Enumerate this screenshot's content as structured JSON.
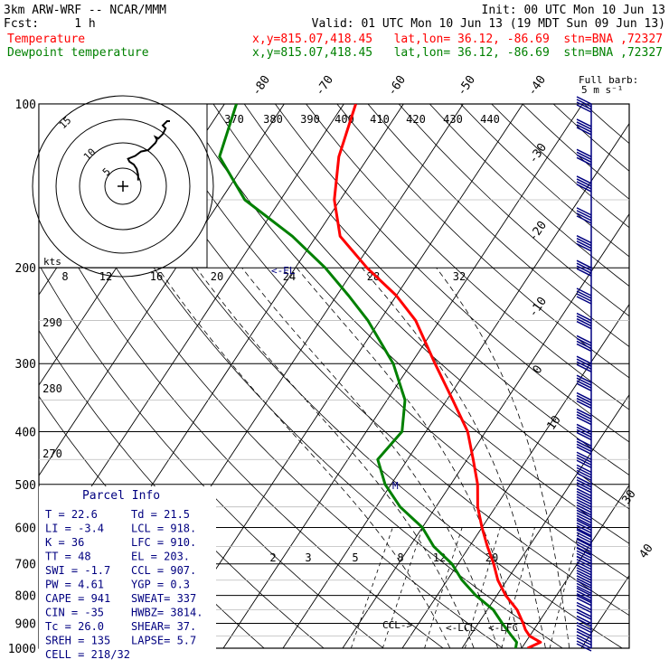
{
  "header": {
    "model": "3km ARW-WRF -- NCAR/MMM",
    "init": "Init: 00 UTC Mon 10 Jun 13",
    "fcst": "Fcst:     1 h",
    "valid": "Valid: 01 UTC Mon 10 Jun 13 (19 MDT Sun 09 Jun 13)",
    "temp_label": "Temperature",
    "temp_loc": "x,y=815.07,418.45   lat,lon= 36.12, -86.69  stn=BNA ,72327",
    "dew_label": "Dewpoint temperature",
    "dew_loc": "x,y=815.07,418.45   lat,lon= 36.12, -86.69  stn=BNA ,72327",
    "barb_title": "Full barb:",
    "barb_unit": "5 m s⁻¹"
  },
  "colors": {
    "temperature": "#ff0000",
    "dewpoint": "#008000",
    "barbs": "#000080",
    "hodo_trace": "#000000"
  },
  "parcel_info": {
    "title": "Parcel Info",
    "rows": [
      [
        "T  =    22.6",
        "Td =  21.5"
      ],
      [
        "LI =    -3.4",
        "LCL =  918."
      ],
      [
        "K  =      36",
        "LFC =  910."
      ],
      [
        "TT =      48",
        "EL  =  203."
      ],
      [
        "SWI =   -1.7",
        "CCL =  907."
      ],
      [
        "PW =    4.61",
        "YGP =   0.3"
      ],
      [
        "CAPE =   941",
        "SWEAT=   337"
      ],
      [
        "CIN =    -35",
        "HWBZ= 3814."
      ],
      [
        "Tc =    26.0",
        "SHEAR=   37."
      ],
      [
        "SREH =   135",
        "LAPSE=   5.7"
      ],
      [
        "CELL = 218/32",
        ""
      ]
    ]
  },
  "hodograph": {
    "kts_label": "kts",
    "ring_labels": [
      "5",
      "10",
      "15"
    ],
    "speed_ticks": [
      "8",
      "12",
      "16",
      "20",
      "24",
      "28",
      "32"
    ]
  },
  "level_labels": {
    "lcl": "LCL",
    "lfc": "<-LFC",
    "el": "<-EL",
    "ccl": "CCL->",
    "cell_marker": "M"
  },
  "chart_data": {
    "type": "skew-T log-P",
    "y_axis": {
      "label": "pressure (hPa)",
      "scale": "log",
      "ticks": [
        100,
        200,
        300,
        400,
        500,
        600,
        700,
        800,
        900,
        1000
      ]
    },
    "isotherm_labels": [
      "-80",
      "-70",
      "-60",
      "-50",
      "-40",
      "-30",
      "-20",
      "-10",
      "0",
      "10",
      "30",
      "40"
    ],
    "theta_labels_top": [
      "370",
      "380",
      "390",
      "400",
      "410",
      "420",
      "430",
      "440"
    ],
    "theta_labels_left": [
      "290",
      "280",
      "270"
    ],
    "mixing_ratio_labels": [
      "2",
      "3",
      "5",
      "8",
      "12",
      "20"
    ],
    "series": [
      {
        "name": "Temperature",
        "points": [
          [
            1000,
            21
          ],
          [
            975,
            22.5
          ],
          [
            950,
            20
          ],
          [
            925,
            18.6
          ],
          [
            900,
            17.5
          ],
          [
            850,
            15
          ],
          [
            800,
            11.5
          ],
          [
            750,
            8.5
          ],
          [
            700,
            6
          ],
          [
            650,
            3
          ],
          [
            600,
            0
          ],
          [
            550,
            -3
          ],
          [
            500,
            -5.5
          ],
          [
            450,
            -9
          ],
          [
            400,
            -13
          ],
          [
            350,
            -19
          ],
          [
            300,
            -26
          ],
          [
            250,
            -34
          ],
          [
            225,
            -40
          ],
          [
            200,
            -48
          ],
          [
            175,
            -56
          ],
          [
            150,
            -61
          ],
          [
            125,
            -65
          ],
          [
            100,
            -68
          ]
        ]
      },
      {
        "name": "Dewpoint temperature",
        "points": [
          [
            1000,
            19
          ],
          [
            975,
            18.5
          ],
          [
            950,
            17
          ],
          [
            925,
            15.5
          ],
          [
            900,
            14
          ],
          [
            850,
            11
          ],
          [
            800,
            6.5
          ],
          [
            750,
            2.5
          ],
          [
            700,
            -1
          ],
          [
            650,
            -6
          ],
          [
            600,
            -10
          ],
          [
            550,
            -16
          ],
          [
            500,
            -21
          ],
          [
            450,
            -25
          ],
          [
            400,
            -24
          ],
          [
            350,
            -27
          ],
          [
            300,
            -33
          ],
          [
            250,
            -42
          ],
          [
            225,
            -48
          ],
          [
            200,
            -55
          ],
          [
            175,
            -64
          ],
          [
            150,
            -76
          ],
          [
            125,
            -85
          ],
          [
            100,
            -88
          ]
        ]
      }
    ],
    "wind_barbs": [
      [
        1000,
        10
      ],
      [
        975,
        10
      ],
      [
        950,
        12
      ],
      [
        925,
        12
      ],
      [
        900,
        10
      ],
      [
        875,
        8
      ],
      [
        850,
        12
      ],
      [
        825,
        12
      ],
      [
        800,
        14
      ],
      [
        775,
        14
      ],
      [
        750,
        16
      ],
      [
        725,
        16
      ],
      [
        700,
        16
      ],
      [
        675,
        18
      ],
      [
        650,
        18
      ],
      [
        625,
        18
      ],
      [
        600,
        20
      ],
      [
        575,
        20
      ],
      [
        550,
        22
      ],
      [
        525,
        22
      ],
      [
        500,
        24
      ],
      [
        475,
        24
      ],
      [
        450,
        24
      ],
      [
        425,
        26
      ],
      [
        400,
        28
      ],
      [
        375,
        28
      ],
      [
        350,
        30
      ],
      [
        325,
        30
      ],
      [
        300,
        32
      ],
      [
        275,
        34
      ],
      [
        250,
        34
      ],
      [
        225,
        36
      ],
      [
        200,
        38
      ],
      [
        180,
        36
      ],
      [
        160,
        34
      ],
      [
        140,
        30
      ],
      [
        125,
        28
      ],
      [
        110,
        26
      ],
      [
        100,
        24
      ]
    ],
    "hodograph_trace": [
      [
        -2,
        -4
      ],
      [
        -2,
        -8
      ],
      [
        -3,
        -12
      ],
      [
        -5,
        -15
      ],
      [
        -8,
        -17
      ],
      [
        -9,
        -19
      ],
      [
        -4,
        -21
      ],
      [
        0,
        -24
      ],
      [
        5,
        -25
      ],
      [
        8,
        -28
      ],
      [
        10,
        -30
      ],
      [
        11,
        -32
      ],
      [
        10,
        -34
      ],
      [
        12,
        -33
      ],
      [
        15,
        -36
      ],
      [
        17,
        -40
      ],
      [
        15,
        -42
      ],
      [
        18,
        -45
      ],
      [
        20,
        -45
      ]
    ],
    "grid": true
  }
}
